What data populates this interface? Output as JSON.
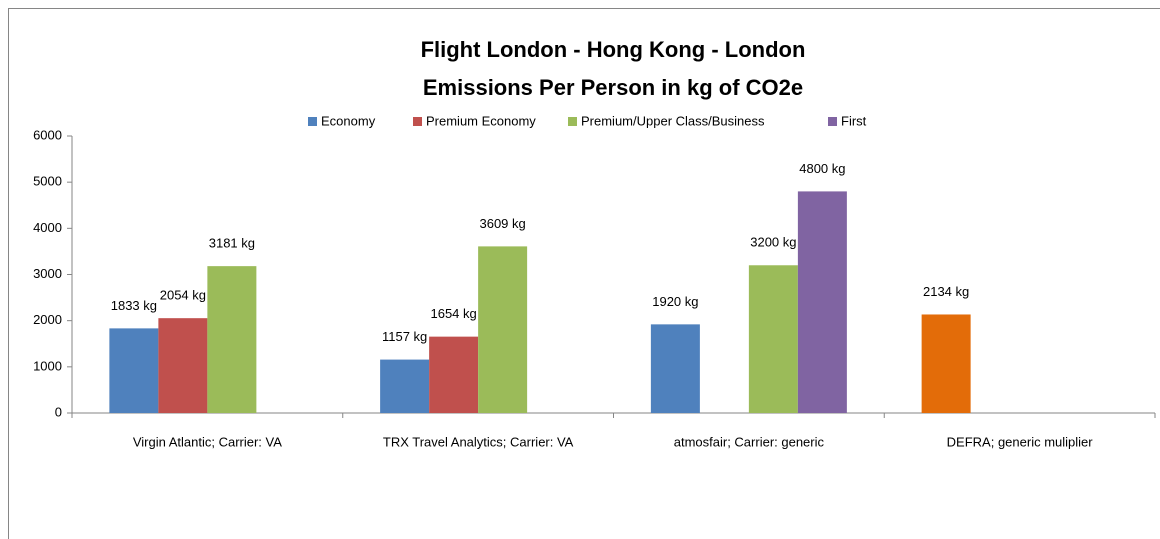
{
  "chart_data": {
    "type": "bar",
    "title": [
      "Flight London - Hong Kong - London",
      "Emissions Per Person in kg of CO2e"
    ],
    "categories": [
      "Virgin Atlantic; Carrier: VA",
      "TRX Travel Analytics; Carrier: VA",
      "atmosfair; Carrier: generic",
      "DEFRA; generic muliplier"
    ],
    "series": [
      {
        "name": "Economy",
        "color": "#4f81bd",
        "colors": [
          "#4f81bd",
          "#4f81bd",
          "#4f81bd",
          "#e36c09"
        ],
        "values": [
          1833,
          1157,
          1920,
          2134
        ],
        "value_labels": [
          "1833 kg",
          "1157 kg",
          "1920 kg",
          "2134 kg"
        ]
      },
      {
        "name": "Premium Economy",
        "color": "#c0504d",
        "values": [
          2054,
          1654,
          null,
          null
        ],
        "value_labels": [
          "2054 kg",
          "1654 kg",
          null,
          null
        ]
      },
      {
        "name": "Premium/Upper Class/Business",
        "color": "#9bbb59",
        "values": [
          3181,
          3609,
          3200,
          null
        ],
        "value_labels": [
          "3181 kg",
          "3609 kg",
          "3200 kg",
          null
        ]
      },
      {
        "name": "First",
        "color": "#8064a2",
        "values": [
          null,
          null,
          4800,
          null
        ],
        "value_labels": [
          null,
          null,
          "4800 kg",
          null
        ]
      }
    ],
    "ylim": [
      0,
      6000
    ],
    "yticks": [
      0,
      1000,
      2000,
      3000,
      4000,
      5000,
      6000
    ],
    "grid": false,
    "legend": "top"
  }
}
